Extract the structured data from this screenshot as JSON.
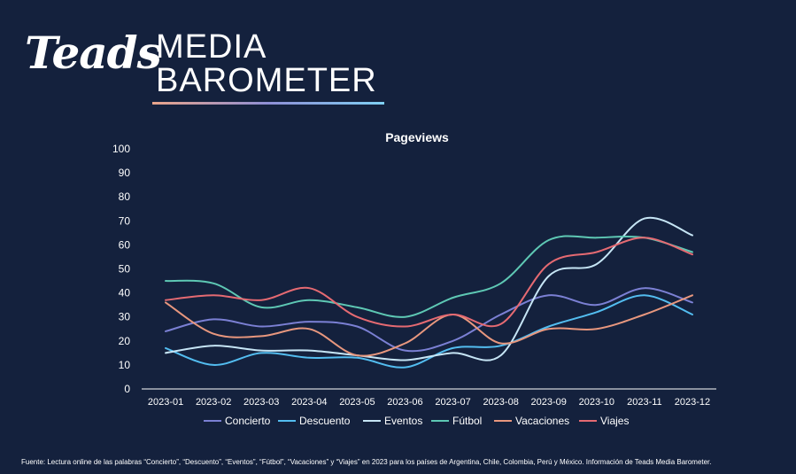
{
  "header": {
    "logo_text": "Teads",
    "title_line1": "MEDIA",
    "title_line2": "BAROMETER"
  },
  "chart_data": {
    "type": "line",
    "title": "Pageviews",
    "xlabel": "",
    "ylabel": "",
    "ylim": [
      0,
      100
    ],
    "yticks": [
      0,
      10,
      20,
      30,
      40,
      50,
      60,
      70,
      80,
      90,
      100
    ],
    "grid": false,
    "legend_position": "bottom",
    "categories": [
      "2023-01",
      "2023-02",
      "2023-03",
      "2023-04",
      "2023-05",
      "2023-06",
      "2023-07",
      "2023-08",
      "2023-09",
      "2023-10",
      "2023-11",
      "2023-12"
    ],
    "series": [
      {
        "name": "Concierto",
        "color": "#7b80d4",
        "values": [
          24,
          29,
          26,
          28,
          26,
          16,
          20,
          31,
          39,
          35,
          42,
          36
        ]
      },
      {
        "name": "Descuento",
        "color": "#53bdf0",
        "values": [
          17,
          10,
          15,
          13,
          13,
          9,
          17,
          18,
          26,
          32,
          39,
          31
        ]
      },
      {
        "name": "Eventos",
        "color": "#c6e5f5",
        "values": [
          15,
          18,
          16,
          16,
          14,
          12,
          15,
          14,
          47,
          52,
          71,
          64
        ]
      },
      {
        "name": "Fútbol",
        "color": "#5ec8b4",
        "values": [
          45,
          44,
          34,
          37,
          34,
          30,
          38,
          44,
          62,
          63,
          63,
          57
        ]
      },
      {
        "name": "Vacaciones",
        "color": "#e8977e",
        "values": [
          36,
          23,
          22,
          25,
          14,
          19,
          31,
          19,
          25,
          25,
          31,
          39
        ]
      },
      {
        "name": "Viajes",
        "color": "#e56a72",
        "values": [
          37,
          39,
          37,
          42,
          30,
          26,
          31,
          27,
          52,
          57,
          63,
          56
        ]
      }
    ]
  },
  "footer": {
    "source": "Fuente: Lectura online de las palabras “Concierto”, “Descuento”, “Eventos”, “Fútbol”, “Vacaciones” y “Viajes” en 2023 para los países de Argentina, Chile, Colombia, Perú y México. Información de Teads Media Barometer."
  }
}
